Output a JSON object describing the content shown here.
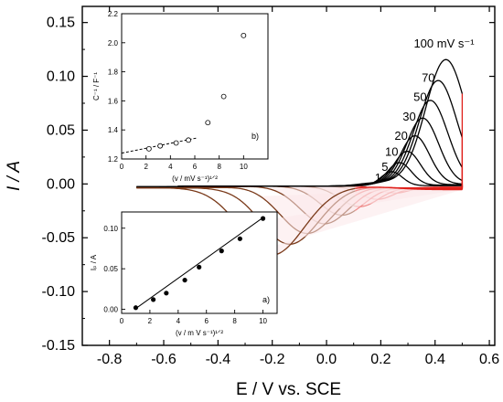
{
  "chart_data": [
    {
      "type": "line",
      "role": "main",
      "xlabel": "E / V vs. SCE",
      "ylabel": "I / A",
      "xlim": [
        -0.9,
        0.62
      ],
      "ylim": [
        -0.15,
        0.165
      ],
      "xticks": [
        -0.8,
        -0.6,
        -0.4,
        -0.2,
        0.0,
        0.2,
        0.4,
        0.6
      ],
      "yticks": [
        -0.15,
        -0.1,
        -0.05,
        0.0,
        0.05,
        0.1,
        0.15
      ],
      "xtick_labels": [
        "-0.8",
        "-0.6",
        "-0.4",
        "-0.2",
        "0.0",
        "0.2",
        "0.4",
        "0.6"
      ],
      "ytick_labels": [
        "-0.15",
        "-0.10",
        "-0.05",
        "0.00",
        "0.05",
        "0.10",
        "0.15"
      ],
      "scan_rate_unit": "100 mV s⁻¹",
      "series": [
        {
          "name": "1",
          "peak_anodic": 0.013,
          "peak_cathodic": -0.006
        },
        {
          "name": "5",
          "peak_anodic": 0.021,
          "peak_cathodic": -0.012
        },
        {
          "name": "10",
          "peak_anodic": 0.031,
          "peak_cathodic": -0.019
        },
        {
          "name": "20",
          "peak_anodic": 0.045,
          "peak_cathodic": -0.027
        },
        {
          "name": "30",
          "peak_anodic": 0.061,
          "peak_cathodic": -0.035
        },
        {
          "name": "50",
          "peak_anodic": 0.077,
          "peak_cathodic": -0.044
        },
        {
          "name": "70",
          "peak_anodic": 0.095,
          "peak_cathodic": -0.054
        },
        {
          "name": "100",
          "peak_anodic": 0.114,
          "peak_cathodic": -0.064
        }
      ],
      "curve_labels": [
        "100 mV s⁻¹",
        "70",
        "50",
        "30",
        "20",
        "10",
        "5",
        "1"
      ],
      "colors": {
        "anodic": "#000000",
        "cathodic_return": "#e0201b",
        "cathodic_fill": "#fbe7ea",
        "brown": "#7a3a1a"
      }
    },
    {
      "type": "scatter",
      "role": "inset",
      "panel_label": "b)",
      "xlabel": "(v / mV s⁻¹)¹ᐟ²",
      "ylabel": "C⁻¹ / F⁻¹",
      "xlim": [
        0,
        12
      ],
      "ylim": [
        1.2,
        2.2
      ],
      "xticks": [
        0,
        2,
        4,
        6,
        8,
        10
      ],
      "yticks": [
        1.2,
        1.4,
        1.6,
        1.8,
        2.0,
        2.2
      ],
      "xtick_labels": [
        "0",
        "2",
        "4",
        "6",
        "8",
        "10"
      ],
      "ytick_labels": [
        "1.2",
        "1.4",
        "1.6",
        "1.8",
        "2.0",
        "2.2"
      ],
      "x": [
        2.24,
        3.16,
        4.47,
        5.48,
        7.07,
        8.37,
        10.0
      ],
      "y": [
        1.27,
        1.29,
        1.31,
        1.33,
        1.45,
        1.63,
        2.05
      ],
      "fit": {
        "x": [
          0,
          6.2
        ],
        "y": [
          1.24,
          1.345
        ]
      }
    },
    {
      "type": "scatter",
      "role": "inset",
      "panel_label": "a)",
      "xlabel": "(v / m V s⁻¹)¹ᐟ²",
      "ylabel": "Iₚ / A",
      "xlim": [
        0,
        11
      ],
      "ylim": [
        -0.005,
        0.12
      ],
      "xticks": [
        0,
        2,
        4,
        6,
        8,
        10
      ],
      "yticks": [
        0.0,
        0.05,
        0.1
      ],
      "xtick_labels": [
        "0",
        "2",
        "4",
        "6",
        "8",
        "10"
      ],
      "ytick_labels": [
        "0.00",
        "0.05",
        "0.10"
      ],
      "x": [
        1.0,
        2.24,
        3.16,
        4.47,
        5.48,
        7.07,
        8.37,
        10.0
      ],
      "y": [
        0.002,
        0.012,
        0.02,
        0.036,
        0.052,
        0.072,
        0.087,
        0.112
      ],
      "fit": {
        "x": [
          1.0,
          10.0
        ],
        "y": [
          0.001,
          0.113
        ]
      }
    }
  ]
}
